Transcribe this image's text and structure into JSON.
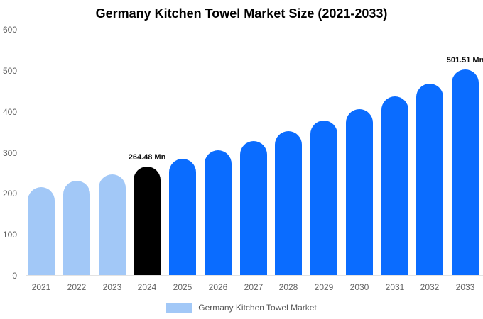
{
  "page": {
    "title": "Germany Kitchen Towel Market Size (2021-2033)"
  },
  "chart_data": {
    "type": "bar",
    "title": "Germany Kitchen Towel Market Size (2021-2033)",
    "categories": [
      "2021",
      "2022",
      "2023",
      "2024",
      "2025",
      "2026",
      "2027",
      "2028",
      "2029",
      "2030",
      "2031",
      "2032",
      "2033"
    ],
    "values": [
      213.7,
      229.4,
      246.3,
      264.48,
      284.0,
      304.9,
      327.4,
      351.5,
      377.4,
      405.3,
      435.2,
      467.3,
      501.51
    ],
    "bar_colors": [
      "#a2c8f7",
      "#a2c8f7",
      "#a2c8f7",
      "#000000",
      "#0a6cff",
      "#0a6cff",
      "#0a6cff",
      "#0a6cff",
      "#0a6cff",
      "#0a6cff",
      "#0a6cff",
      "#0a6cff",
      "#0a6cff"
    ],
    "value_labels": [
      {
        "category": "2024",
        "text": "264.48 Mn"
      },
      {
        "category": "2033",
        "text": "501.51 Mn"
      }
    ],
    "xlabel": "",
    "ylabel": "",
    "ylim": [
      0,
      600
    ],
    "yticks": [
      0,
      100,
      200,
      300,
      400,
      500,
      600
    ],
    "grid": false,
    "legend": {
      "position": "bottom",
      "items": [
        {
          "label": "Germany Kitchen Towel Market",
          "color": "#a2c8f7"
        }
      ]
    },
    "colors": {
      "historical_bar": "#a2c8f7",
      "highlight_bar": "#000000",
      "forecast_bar": "#0a6cff",
      "axis_line": "#d8d8d8",
      "baseline": "#e3e3e3",
      "tick_text": "#616161",
      "annotation_text": "#111111"
    }
  }
}
